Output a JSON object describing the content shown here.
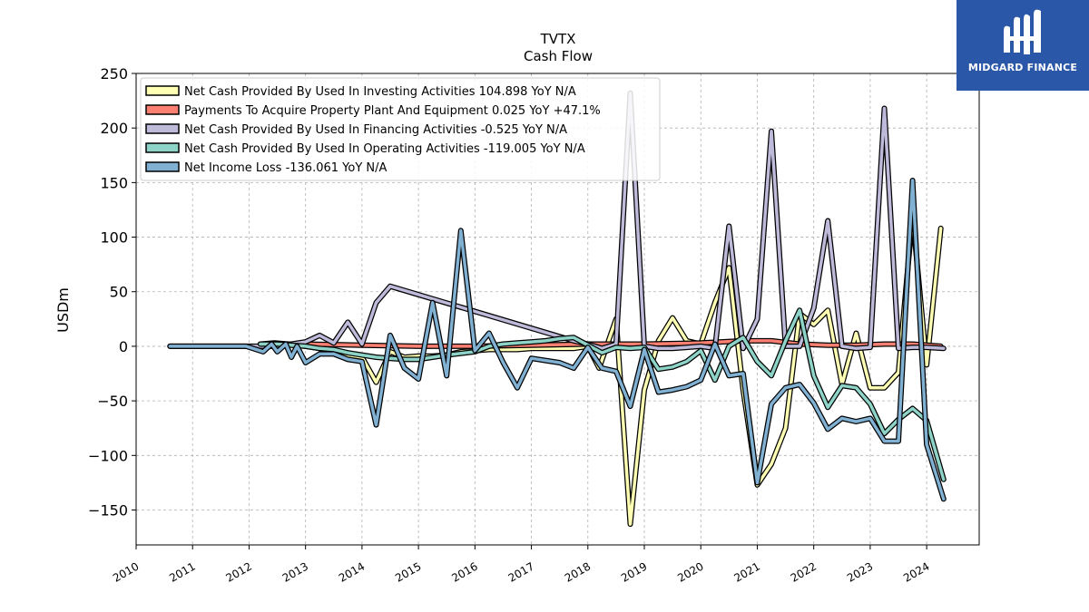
{
  "brand": {
    "name": "MIDGARD FINANCE",
    "color": "#2b57a8"
  },
  "chart_data": {
    "type": "line",
    "title": "TVTX",
    "subtitle": "Cash Flow",
    "ylabel": "USDm",
    "xlabel": "",
    "ylim": [
      -182,
      250
    ],
    "xlim": [
      2010.0,
      2024.93
    ],
    "yticks": [
      -150,
      -100,
      -50,
      0,
      50,
      100,
      150,
      200,
      250
    ],
    "yticklabels": [
      "−150",
      "−100",
      "−50",
      "0",
      "50",
      "100",
      "150",
      "200",
      "250"
    ],
    "xticks": [
      2010,
      2011,
      2012,
      2013,
      2014,
      2015,
      2016,
      2017,
      2018,
      2019,
      2020,
      2021,
      2022,
      2023,
      2024
    ],
    "xticklabels": [
      "2010",
      "2011",
      "2012",
      "2013",
      "2014",
      "2015",
      "2016",
      "2017",
      "2018",
      "2019",
      "2020",
      "2021",
      "2022",
      "2023",
      "2024"
    ],
    "grid": true,
    "legend_position": "top-left",
    "series": [
      {
        "name": "Net Cash Provided By Used In Investing Activities",
        "legend": "Net Cash Provided By Used In Investing Activities  104.898 YoY N/A",
        "color": "#ffffb3",
        "x": [
          2012.2,
          2012.45,
          2012.7,
          2013.0,
          2013.25,
          2013.5,
          2013.75,
          2014.0,
          2014.25,
          2014.5,
          2014.75,
          2015.0,
          2015.25,
          2015.5,
          2015.75,
          2016.0,
          2016.25,
          2016.5,
          2016.75,
          2017.0,
          2017.25,
          2017.5,
          2017.75,
          2018.0,
          2018.2,
          2018.5,
          2018.75,
          2019.0,
          2019.25,
          2019.5,
          2019.75,
          2020.0,
          2020.25,
          2020.5,
          2020.75,
          2021.0,
          2021.25,
          2021.5,
          2021.75,
          2022.0,
          2022.25,
          2022.5,
          2022.75,
          2023.0,
          2023.25,
          2023.5,
          2023.75,
          2024.0,
          2024.25
        ],
        "values": [
          2,
          3,
          2,
          0,
          -2,
          -5,
          -8,
          -10,
          -33,
          -5,
          -10,
          -9,
          -9,
          -8,
          -5,
          -4,
          -3,
          -3,
          -3,
          -2,
          -2,
          -2,
          -2,
          0,
          -20,
          25,
          -163,
          -40,
          5,
          26,
          5,
          2,
          40,
          72,
          -40,
          -127,
          -108,
          -75,
          30,
          20,
          33,
          -35,
          12,
          -38,
          -38,
          -24,
          120,
          -17,
          108
        ]
      },
      {
        "name": "Payments To Acquire Property Plant And Equipment",
        "legend": "Payments To Acquire Property Plant And Equipment  0.025 YoY +47.1%",
        "color": "#fb8072",
        "x": [
          2012.2,
          2013.0,
          2014.0,
          2015.0,
          2016.0,
          2017.0,
          2018.0,
          2019.0,
          2020.0,
          2020.75,
          2021.25,
          2021.75,
          2022.25,
          2022.75,
          2023.25,
          2023.75,
          2024.25
        ],
        "values": [
          2,
          2,
          1,
          0,
          0,
          1,
          2,
          2,
          3,
          5,
          5,
          2,
          1,
          1,
          2,
          2,
          0
        ]
      },
      {
        "name": "Net Cash Provided By Used In Financing Activities",
        "legend": "Net Cash Provided By Used In Financing Activities  -0.525 YoY N/A",
        "color": "#bebada",
        "x": [
          2010.6,
          2011.0,
          2011.5,
          2012.0,
          2012.5,
          2013.0,
          2013.25,
          2013.5,
          2013.75,
          2014.0,
          2014.25,
          2014.5,
          2017.75,
          2018.0,
          2018.25,
          2018.5,
          2018.75,
          2019.0,
          2019.25,
          2019.5,
          2019.75,
          2020.0,
          2020.25,
          2020.5,
          2020.75,
          2021.0,
          2021.25,
          2021.5,
          2021.75,
          2022.0,
          2022.25,
          2022.5,
          2022.75,
          2023.0,
          2023.25,
          2023.5,
          2023.75,
          2024.0,
          2024.3
        ],
        "values": [
          0,
          0,
          0,
          0,
          0,
          4,
          10,
          3,
          22,
          2,
          40,
          55,
          5,
          2,
          -2,
          2,
          232,
          0,
          -2,
          -2,
          -1,
          0,
          -2,
          110,
          -2,
          25,
          197,
          0,
          0,
          35,
          115,
          0,
          -2,
          -1,
          218,
          -2,
          -1,
          -1,
          -2
        ]
      },
      {
        "name": "Net Cash Provided By Used In Operating Activities",
        "legend": "Net Cash Provided By Used In Operating Activities  -119.005 YoY N/A",
        "color": "#8dd3c7",
        "x": [
          2012.2,
          2012.5,
          2012.75,
          2013.0,
          2013.25,
          2013.5,
          2013.75,
          2014.0,
          2014.25,
          2014.5,
          2014.75,
          2015.0,
          2015.25,
          2015.5,
          2016.0,
          2016.25,
          2016.5,
          2016.75,
          2017.0,
          2017.25,
          2017.5,
          2017.75,
          2018.0,
          2018.25,
          2018.5,
          2018.75,
          2019.0,
          2019.25,
          2019.5,
          2019.75,
          2020.0,
          2020.25,
          2020.5,
          2020.75,
          2021.0,
          2021.25,
          2021.5,
          2021.75,
          2022.0,
          2022.25,
          2022.5,
          2022.75,
          2023.0,
          2023.25,
          2023.5,
          2023.75,
          2024.0,
          2024.3
        ],
        "values": [
          2,
          2,
          1,
          0,
          -2,
          -3,
          -6,
          -8,
          -10,
          -11,
          -12,
          -12,
          -10,
          -8,
          -5,
          0,
          2,
          3,
          4,
          5,
          7,
          8,
          1,
          -6,
          -1,
          -2,
          -1,
          -21,
          -19,
          -14,
          -4,
          -31,
          0,
          8,
          -14,
          -27,
          5,
          33,
          -27,
          -56,
          -36,
          -38,
          -53,
          -80,
          -67,
          -57,
          -68,
          -122
        ]
      },
      {
        "name": "Net Income Loss",
        "legend": "Net Income Loss  -136.061 YoY N/A",
        "color": "#80b1d3",
        "x": [
          2010.6,
          2011.0,
          2011.5,
          2011.95,
          2012.25,
          2012.4,
          2012.5,
          2012.65,
          2012.75,
          2012.85,
          2013.0,
          2013.25,
          2013.5,
          2013.75,
          2014.0,
          2014.25,
          2014.5,
          2014.75,
          2015.0,
          2015.25,
          2015.5,
          2015.75,
          2016.0,
          2016.25,
          2016.5,
          2016.75,
          2017.0,
          2017.25,
          2017.5,
          2017.75,
          2018.0,
          2018.25,
          2018.5,
          2018.75,
          2019.0,
          2019.25,
          2019.5,
          2019.75,
          2020.0,
          2020.25,
          2020.5,
          2020.75,
          2021.0,
          2021.25,
          2021.5,
          2021.75,
          2022.0,
          2022.25,
          2022.5,
          2022.75,
          2023.0,
          2023.25,
          2023.5,
          2023.75,
          2024.0,
          2024.3
        ],
        "values": [
          0,
          0,
          0,
          0,
          -5,
          2,
          -5,
          2,
          -10,
          0,
          -15,
          -7,
          -7,
          -12,
          -14,
          -72,
          10,
          -20,
          -30,
          40,
          -27,
          106,
          -4,
          12,
          -15,
          -38,
          -11,
          -13,
          -15,
          -20,
          -1,
          -20,
          -23,
          -55,
          -3,
          -42,
          -40,
          -37,
          -31,
          2,
          -27,
          -25,
          -125,
          -53,
          -38,
          -35,
          -52,
          -76,
          -66,
          -69,
          -66,
          -87,
          -87,
          152,
          -90,
          -140
        ]
      }
    ]
  }
}
